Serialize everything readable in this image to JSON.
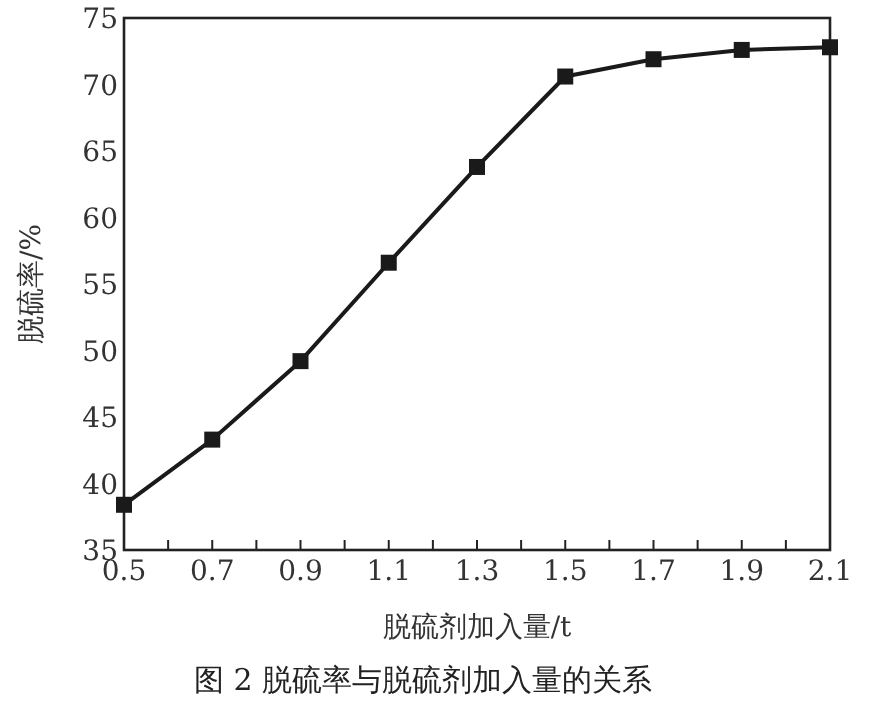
{
  "chart_data": {
    "type": "line",
    "title": "图 2 脱硫率与脱硫剂加入量的关系",
    "xlabel": "脱硫剂加入量/t",
    "ylabel": "脱硫率/%",
    "x": [
      0.5,
      0.7,
      0.9,
      1.1,
      1.3,
      1.5,
      1.7,
      1.9,
      2.1
    ],
    "series": [
      {
        "color": "#1a1a1a",
        "values": [
          38.4,
          43.3,
          49.2,
          56.6,
          63.8,
          70.6,
          71.9,
          72.6,
          72.8
        ]
      }
    ],
    "xlim": [
      0.5,
      2.1
    ],
    "ylim": [
      35,
      75
    ],
    "xticks": [
      0.5,
      {
        "value": 0.6,
        "label": null
      },
      0.7,
      {
        "value": 0.8,
        "label": null
      },
      0.9,
      {
        "value": 1.0,
        "label": null
      },
      1.1,
      {
        "value": 1.2,
        "label": null
      },
      1.3,
      {
        "value": 1.4,
        "label": null
      },
      1.5,
      {
        "value": 1.6,
        "label": null
      },
      1.7,
      {
        "value": 1.8,
        "label": null
      },
      1.9,
      {
        "value": 2.0,
        "label": null
      },
      2.1
    ],
    "yticks": [
      35,
      40,
      45,
      50,
      55,
      60,
      65,
      70,
      75
    ],
    "marker": "square",
    "line_style": "solid",
    "grid": false
  }
}
